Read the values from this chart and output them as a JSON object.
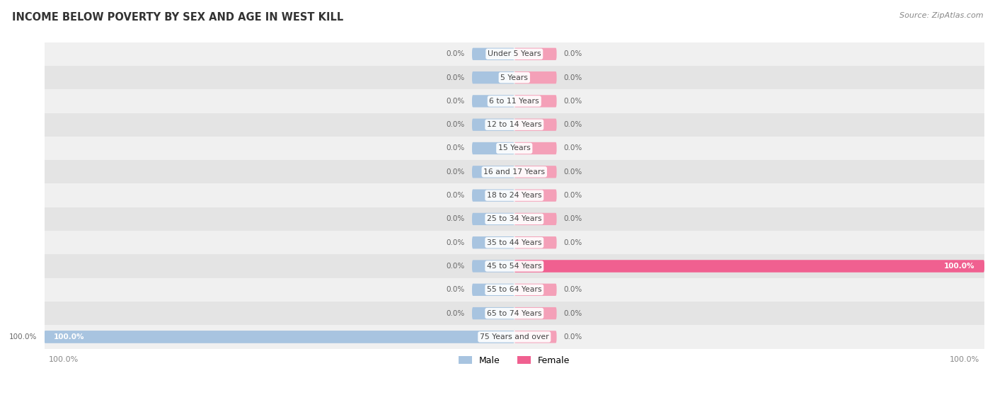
{
  "title": "INCOME BELOW POVERTY BY SEX AND AGE IN WEST KILL",
  "source": "Source: ZipAtlas.com",
  "categories": [
    "Under 5 Years",
    "5 Years",
    "6 to 11 Years",
    "12 to 14 Years",
    "15 Years",
    "16 and 17 Years",
    "18 to 24 Years",
    "25 to 34 Years",
    "35 to 44 Years",
    "45 to 54 Years",
    "55 to 64 Years",
    "65 to 74 Years",
    "75 Years and over"
  ],
  "male_values": [
    0.0,
    0.0,
    0.0,
    0.0,
    0.0,
    0.0,
    0.0,
    0.0,
    0.0,
    0.0,
    0.0,
    0.0,
    100.0
  ],
  "female_values": [
    0.0,
    0.0,
    0.0,
    0.0,
    0.0,
    0.0,
    0.0,
    0.0,
    0.0,
    100.0,
    0.0,
    0.0,
    0.0
  ],
  "male_color": "#a8c4e0",
  "female_color": "#f4a0b8",
  "female_color_bright": "#f06090",
  "row_bg_even": "#f0f0f0",
  "row_bg_odd": "#e4e4e4",
  "label_color": "#444444",
  "value_color": "#666666",
  "title_color": "#333333",
  "axis_label_color": "#888888",
  "max_val": 100.0,
  "min_bar_display": 9.0,
  "legend_male": "Male",
  "legend_female": "Female"
}
